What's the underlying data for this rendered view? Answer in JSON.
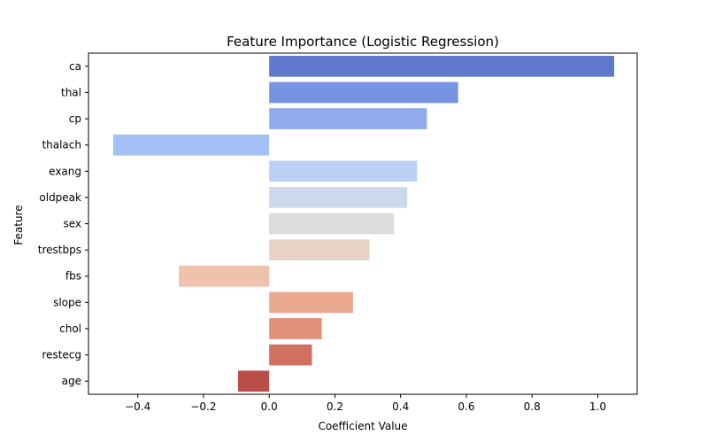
{
  "chart_data": {
    "type": "bar",
    "orientation": "horizontal",
    "title": "Feature Importance (Logistic Regression)",
    "xlabel": "Coefficient Value",
    "ylabel": "Feature",
    "xlim": [
      -0.55,
      1.12
    ],
    "xticks": [
      -0.4,
      -0.2,
      0.0,
      0.2,
      0.4,
      0.6,
      0.8,
      1.0
    ],
    "xtick_labels": [
      "−0.4",
      "−0.2",
      "0.0",
      "0.2",
      "0.4",
      "0.6",
      "0.8",
      "1.0"
    ],
    "grid": false,
    "categories": [
      "ca",
      "thal",
      "cp",
      "thalach",
      "exang",
      "oldpeak",
      "sex",
      "trestbps",
      "fbs",
      "slope",
      "chol",
      "restecg",
      "age"
    ],
    "values": [
      1.05,
      0.575,
      0.48,
      -0.475,
      0.45,
      0.42,
      0.38,
      0.305,
      -0.275,
      0.255,
      0.16,
      0.13,
      -0.095
    ],
    "colors": [
      "#5f79cd",
      "#7694e0",
      "#8fabed",
      "#a5c0f7",
      "#bcd0f5",
      "#ccd9ed",
      "#dcdcdc",
      "#e8d1c5",
      "#eec2ab",
      "#eaa990",
      "#e08f78",
      "#d1705e",
      "#bc4e4a"
    ]
  }
}
